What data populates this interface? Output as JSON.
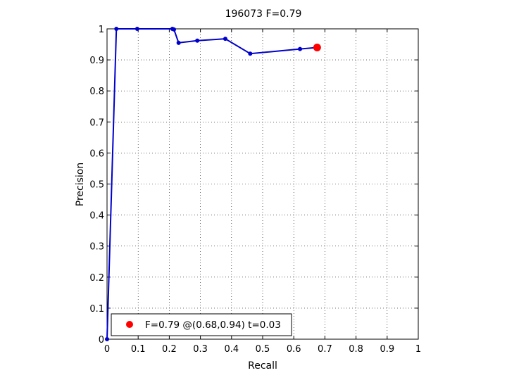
{
  "chart_data": {
    "type": "line",
    "title": "196073 F=0.79",
    "xlabel": "Recall",
    "ylabel": "Precision",
    "xlim": [
      0,
      1
    ],
    "ylim": [
      0,
      1
    ],
    "grid": true,
    "x_ticks": [
      "0",
      "0.1",
      "0.2",
      "0.3",
      "0.4",
      "0.5",
      "0.6",
      "0.7",
      "0.8",
      "0.9",
      "1"
    ],
    "y_ticks": [
      "0",
      "0.1",
      "0.2",
      "0.3",
      "0.4",
      "0.5",
      "0.6",
      "0.7",
      "0.8",
      "0.9",
      "1"
    ],
    "series": [
      {
        "color": "#0000cc",
        "x": [
          0,
          0.03,
          0.097,
          0.21,
          0.215,
          0.23,
          0.29,
          0.38,
          0.46,
          0.62,
          0.675
        ],
        "y": [
          0,
          1,
          1,
          1,
          0.998,
          0.955,
          0.962,
          0.968,
          0.92,
          0.935,
          0.94
        ]
      }
    ],
    "highlight_point": {
      "x": 0.675,
      "y": 0.94,
      "color": "#ff0000"
    },
    "legend": {
      "placement": "bottom-left",
      "text": "F=0.79 @(0.68,0.94) t=0.03"
    }
  }
}
